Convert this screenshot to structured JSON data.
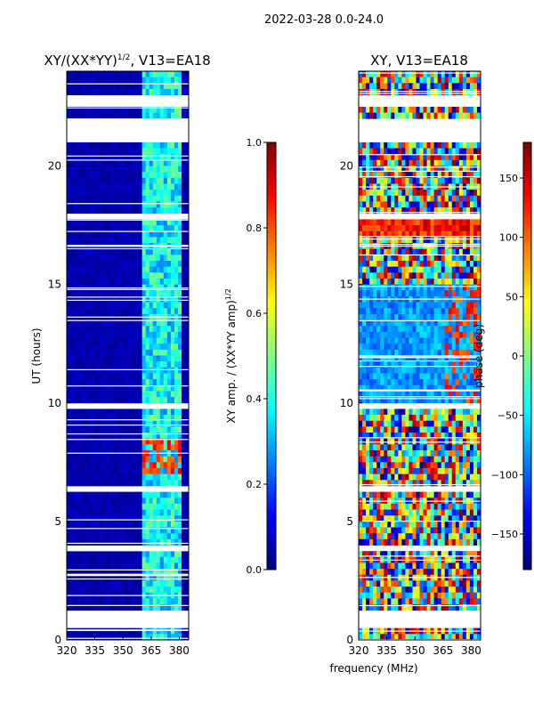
{
  "suptitle": "2022-03-28 0.0-24.0",
  "xlabel_shared": "frequency (MHz)",
  "colors": {
    "white": "#ffffff",
    "jet_stops": [
      "#00007f",
      "#0000ff",
      "#007fff",
      "#00ffff",
      "#7fff7f",
      "#ffff00",
      "#ff7f00",
      "#ff0000",
      "#7f0000"
    ]
  },
  "chart_data": [
    {
      "type": "heatmap",
      "title_main": "XY/(XX*YY)",
      "title_exp": "1/2",
      "title_tail": ", V13=EA18",
      "ylabel": "UT (hours)",
      "xlim": [
        320,
        385
      ],
      "ylim": [
        0,
        24
      ],
      "xticks": [
        320,
        335,
        350,
        365,
        380
      ],
      "yticks": [
        0,
        5,
        10,
        15,
        20
      ],
      "active_band_mhz": [
        361,
        381
      ],
      "gaps_hours": [
        [
          0.5,
          1.2
        ],
        [
          3.7,
          3.9
        ],
        [
          6.2,
          6.5
        ],
        [
          9.8,
          10.0
        ],
        [
          17.7,
          18.1
        ],
        [
          21.1,
          21.9
        ],
        [
          22.6,
          22.9
        ]
      ],
      "colorbar": {
        "label_main": "XY amp. / (XX*YY amp)",
        "label_exp": "1/2",
        "range": [
          0.0,
          1.0
        ],
        "ticks": [
          "0.0",
          "0.2",
          "0.4",
          "0.6",
          "0.8",
          "1.0"
        ]
      }
    },
    {
      "type": "heatmap",
      "title": "XY, V13=EA18",
      "ylabel": "",
      "xlim": [
        320,
        385
      ],
      "ylim": [
        0,
        24
      ],
      "xticks": [
        320,
        335,
        350,
        365,
        380
      ],
      "yticks": [
        0,
        5,
        10,
        15,
        20
      ],
      "gaps_hours": [
        [
          0.5,
          1.2
        ],
        [
          3.7,
          3.9
        ],
        [
          6.2,
          6.5
        ],
        [
          9.8,
          10.0
        ],
        [
          17.7,
          18.1
        ],
        [
          21.1,
          21.9
        ],
        [
          22.6,
          22.9
        ]
      ],
      "colorbar": {
        "label": "phase (deg)",
        "range": [
          -180,
          180
        ],
        "ticks": [
          "-150",
          "-100",
          "-50",
          "0",
          "50",
          "100",
          "150"
        ]
      }
    }
  ]
}
